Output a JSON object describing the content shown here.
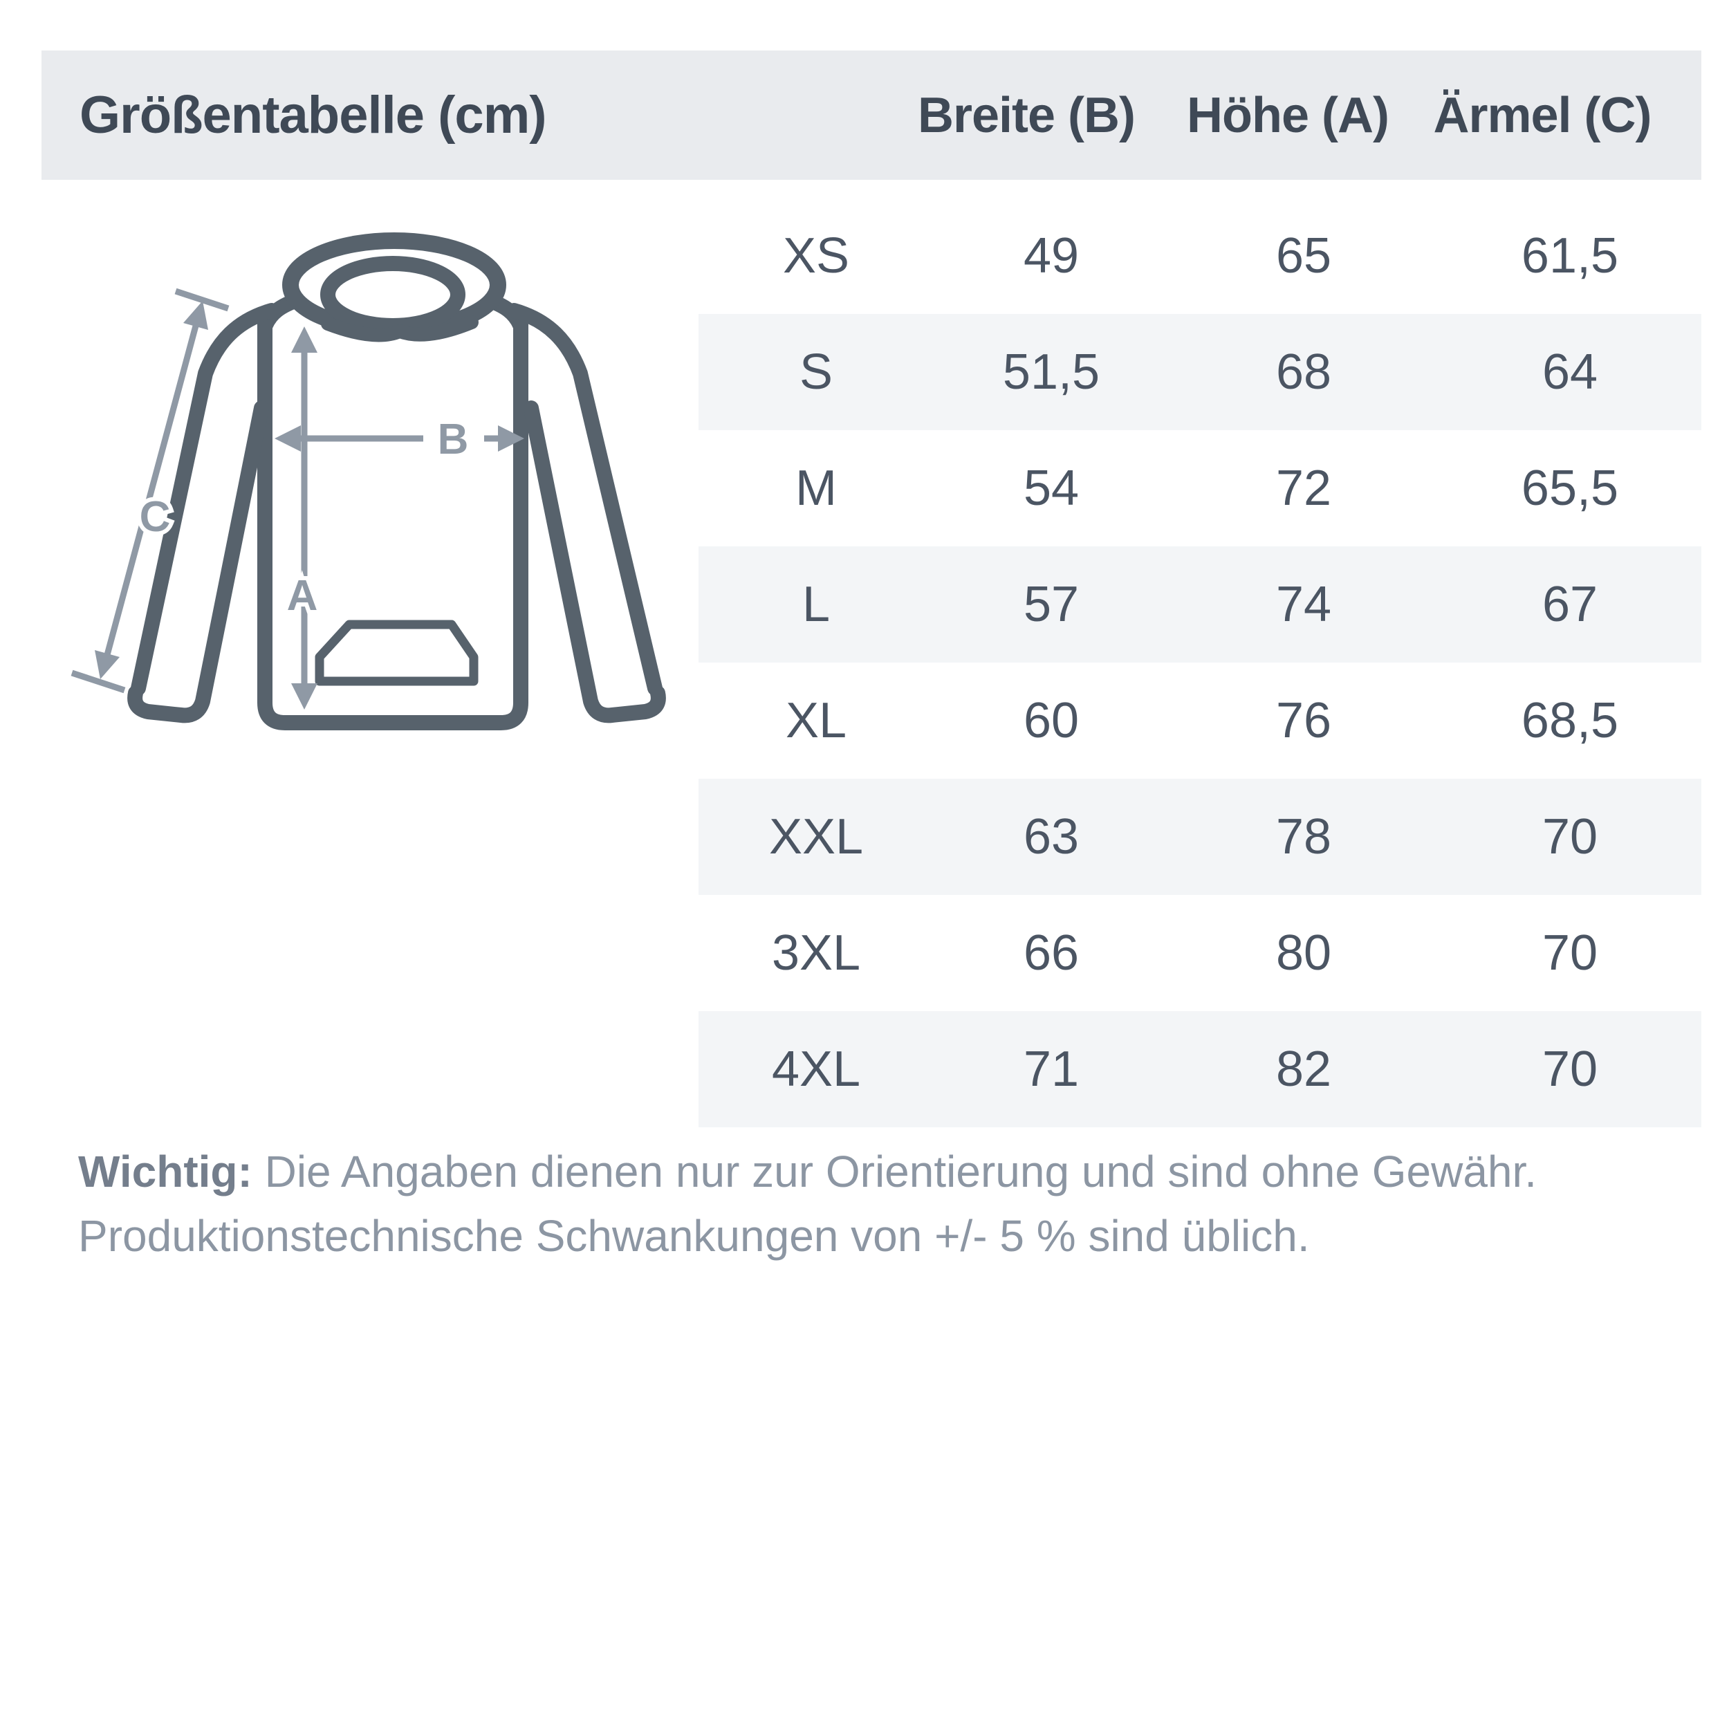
{
  "header": {
    "title": "Größentabelle (cm)",
    "columns": [
      "Breite (B)",
      "Höhe (A)",
      "Ärmel (C)"
    ],
    "background_color": "#e9ebee",
    "text_color": "#3f4956"
  },
  "size_table": {
    "unit": "cm",
    "stripe_color": "#f3f5f7",
    "text_color": "#4b5563",
    "rows": [
      {
        "size": "XS",
        "breite": "49",
        "hoehe": "65",
        "aermel": "61,5"
      },
      {
        "size": "S",
        "breite": "51,5",
        "hoehe": "68",
        "aermel": "64"
      },
      {
        "size": "M",
        "breite": "54",
        "hoehe": "72",
        "aermel": "65,5"
      },
      {
        "size": "L",
        "breite": "57",
        "hoehe": "74",
        "aermel": "67"
      },
      {
        "size": "XL",
        "breite": "60",
        "hoehe": "76",
        "aermel": "68,5"
      },
      {
        "size": "XXL",
        "breite": "63",
        "hoehe": "78",
        "aermel": "70"
      },
      {
        "size": "3XL",
        "breite": "66",
        "hoehe": "80",
        "aermel": "70"
      },
      {
        "size": "4XL",
        "breite": "71",
        "hoehe": "82",
        "aermel": "70"
      }
    ]
  },
  "diagram": {
    "labels": {
      "a": "A",
      "b": "B",
      "c": "C"
    },
    "outline_color": "#57626c",
    "arrow_color": "#8f99a5"
  },
  "disclaimer": {
    "label": "Wichtig:",
    "line1": " Die Angaben dienen nur zur Orientierung und sind ohne Gewähr.",
    "line2": "Produktionstechnische Schwankungen von +/- 5 % sind üblich."
  }
}
